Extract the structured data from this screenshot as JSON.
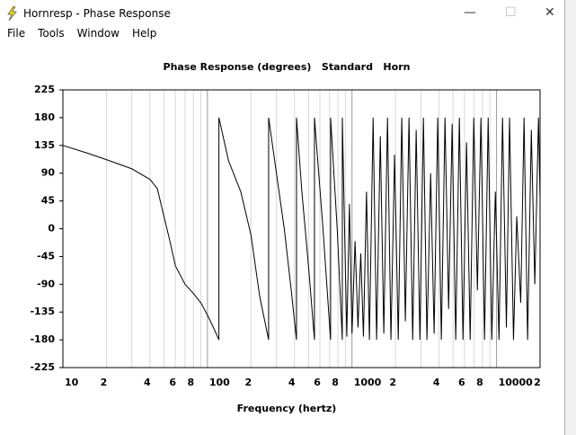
{
  "window": {
    "title": "Hornresp - Phase Response",
    "menu": [
      "File",
      "Tools",
      "Window",
      "Help"
    ]
  },
  "chart_data": {
    "type": "line",
    "title": "Phase Response (degrees)   Standard   Horn",
    "xlabel": "Frequency (hertz)",
    "xscale": "log",
    "grid": "x",
    "xlim": [
      10,
      20000
    ],
    "ylim": [
      -225,
      225
    ],
    "yticks": [
      225,
      180,
      135,
      90,
      45,
      0,
      -45,
      -90,
      -135,
      -180,
      -225
    ],
    "xticks": [
      10,
      {
        "value": 20,
        "label": "2"
      },
      {
        "value": 40,
        "label": "4"
      },
      {
        "value": 60,
        "label": "6"
      },
      {
        "value": 80,
        "label": "8"
      },
      100,
      {
        "value": 200,
        "label": "2"
      },
      {
        "value": 400,
        "label": "4"
      },
      {
        "value": 600,
        "label": "6"
      },
      {
        "value": 800,
        "label": "8"
      },
      1000,
      {
        "value": 2000,
        "label": "2"
      },
      {
        "value": 4000,
        "label": "4"
      },
      {
        "value": 6000,
        "label": "6"
      },
      {
        "value": 8000,
        "label": "8"
      },
      10000,
      {
        "value": 20000,
        "label": "2"
      }
    ],
    "minor_xticks": [
      30,
      50,
      70,
      90,
      300,
      500,
      700,
      900,
      3000,
      5000,
      7000,
      9000
    ],
    "series": [
      {
        "color": "#000000",
        "x": [
          10,
          15,
          20,
          30,
          40,
          45,
          50,
          55,
          60,
          70,
          80,
          90,
          100,
          110,
          120,
          120,
          140,
          170,
          200,
          230,
          265,
          265,
          300,
          340,
          380,
          413,
          413,
          450,
          500,
          550,
          550,
          630,
          711,
          711,
          790,
          857,
          857,
          920,
          960,
          1000,
          1050,
          1100,
          1150,
          1200,
          1260,
          1320,
          1400,
          1480,
          1570,
          1660,
          1760,
          1860,
          1970,
          2090,
          2210,
          2340,
          2480,
          2630,
          2780,
          2950,
          3120,
          3300,
          3500,
          3700,
          3920,
          4150,
          4400,
          4660,
          4930,
          5220,
          5530,
          5860,
          6200,
          6570,
          6960,
          7370,
          7800,
          8260,
          8750,
          9270,
          9810,
          10400,
          11000,
          11700,
          12300,
          13100,
          13800,
          14700,
          15500,
          16400,
          17400,
          18400,
          19500,
          20000
        ],
        "values": [
          135,
          122,
          112,
          97,
          80,
          65,
          20,
          -20,
          -60,
          -90,
          -105,
          -120,
          -140,
          -160,
          -180,
          180,
          110,
          60,
          -10,
          -110,
          -180,
          180,
          90,
          0,
          -100,
          -180,
          180,
          60,
          -60,
          -180,
          180,
          0,
          -180,
          180,
          0,
          -180,
          180,
          -175,
          40,
          -170,
          -20,
          -160,
          -40,
          -175,
          60,
          -180,
          180,
          -180,
          150,
          -170,
          180,
          -180,
          120,
          -180,
          180,
          -150,
          180,
          -180,
          160,
          -180,
          180,
          -180,
          90,
          -170,
          180,
          -180,
          180,
          -130,
          170,
          -180,
          180,
          -180,
          140,
          -180,
          180,
          -100,
          180,
          -180,
          180,
          -180,
          60,
          -180,
          180,
          -160,
          180,
          -180,
          20,
          -120,
          180,
          -180,
          160,
          -90,
          180,
          50
        ]
      }
    ]
  }
}
